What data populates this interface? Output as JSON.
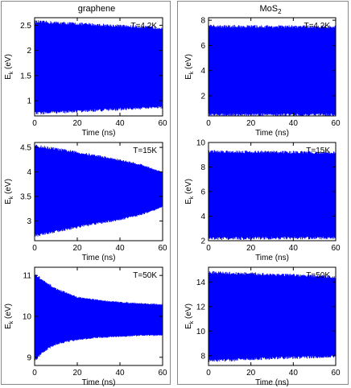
{
  "columns": [
    {
      "title_main": "graphene",
      "title_sub": ""
    },
    {
      "title_main": "MoS",
      "title_sub": "2"
    }
  ],
  "signal_color": "#0000ff",
  "chart_data": [
    {
      "type": "area",
      "column": 0,
      "row": 0,
      "annotation": "T=4.2K",
      "xlabel": "Time (ns)",
      "ylabel_main": "E",
      "ylabel_sub": "k",
      "ylabel_unit": " (eV)",
      "xlim": [
        0,
        60
      ],
      "ylim": [
        0.7,
        2.65
      ],
      "xticks": [
        0,
        20,
        40,
        60
      ],
      "yticks": [
        1,
        1.5,
        2,
        2.5
      ],
      "ytick_labels": [
        "1",
        "1.5",
        "2",
        "2.5"
      ],
      "upper_envelope": {
        "x": [
          0,
          60
        ],
        "y": [
          2.54,
          2.42
        ]
      },
      "lower_envelope": {
        "x": [
          0,
          60
        ],
        "y": [
          0.78,
          0.9
        ]
      }
    },
    {
      "type": "area",
      "column": 0,
      "row": 1,
      "annotation": "T=15K",
      "xlabel": "Time (ns)",
      "ylabel_main": "E",
      "ylabel_sub": "k",
      "ylabel_unit": " (eV)",
      "xlim": [
        0,
        60
      ],
      "ylim": [
        2.6,
        4.6
      ],
      "xticks": [
        0,
        20,
        40,
        60
      ],
      "yticks": [
        3,
        3.5,
        4,
        4.5
      ],
      "ytick_labels": [
        "3",
        "3.5",
        "4",
        "4.5"
      ],
      "upper_envelope": {
        "x": [
          0,
          10,
          20,
          30,
          40,
          50,
          60
        ],
        "y": [
          4.5,
          4.44,
          4.37,
          4.3,
          4.22,
          4.13,
          3.98
        ]
      },
      "lower_envelope": {
        "x": [
          0,
          10,
          20,
          30,
          40,
          50,
          60
        ],
        "y": [
          2.73,
          2.82,
          2.9,
          2.98,
          3.05,
          3.15,
          3.3
        ]
      }
    },
    {
      "type": "area",
      "column": 0,
      "row": 2,
      "annotation": "T=50K",
      "xlabel": "Time (ns)",
      "ylabel_main": "E",
      "ylabel_sub": "k",
      "ylabel_unit": " (eV)",
      "xlim": [
        0,
        60
      ],
      "ylim": [
        8.8,
        11.2
      ],
      "xticks": [
        0,
        20,
        40,
        60
      ],
      "yticks": [
        9,
        10,
        11
      ],
      "ytick_labels": [
        "9",
        "10",
        "11"
      ],
      "upper_envelope": {
        "x": [
          0,
          5,
          10,
          20,
          30,
          40,
          50,
          60
        ],
        "y": [
          11.0,
          10.8,
          10.65,
          10.45,
          10.38,
          10.33,
          10.3,
          10.27
        ]
      },
      "lower_envelope": {
        "x": [
          0,
          5,
          10,
          20,
          30,
          40,
          50,
          60
        ],
        "y": [
          8.95,
          9.2,
          9.35,
          9.45,
          9.5,
          9.52,
          9.55,
          9.55
        ]
      }
    },
    {
      "type": "area",
      "column": 1,
      "row": 0,
      "annotation": "T=4.2K",
      "xlabel": "Time (ns)",
      "ylabel_main": "E",
      "ylabel_sub": "k",
      "ylabel_unit": " (eV)",
      "xlim": [
        0,
        60
      ],
      "ylim": [
        0.4,
        8.2
      ],
      "xticks": [
        0,
        20,
        40,
        60
      ],
      "yticks": [
        2,
        4,
        6,
        8
      ],
      "ytick_labels": [
        "2",
        "4",
        "6",
        "8"
      ],
      "upper_envelope": {
        "x": [
          0,
          60
        ],
        "y": [
          7.4,
          7.35
        ]
      },
      "lower_envelope": {
        "x": [
          0,
          60
        ],
        "y": [
          0.6,
          0.62
        ]
      }
    },
    {
      "type": "area",
      "column": 1,
      "row": 1,
      "annotation": "T=15K",
      "xlabel": "Time (ns)",
      "ylabel_main": "E",
      "ylabel_sub": "k",
      "ylabel_unit": " (eV)",
      "xlim": [
        0,
        60
      ],
      "ylim": [
        2,
        10
      ],
      "xticks": [
        0,
        20,
        40,
        60
      ],
      "yticks": [
        2,
        4,
        6,
        8,
        10
      ],
      "ytick_labels": [
        "2",
        "4",
        "6",
        "8",
        "10"
      ],
      "upper_envelope": {
        "x": [
          0,
          60
        ],
        "y": [
          9.15,
          9.05
        ]
      },
      "lower_envelope": {
        "x": [
          0,
          60
        ],
        "y": [
          2.3,
          2.35
        ]
      }
    },
    {
      "type": "area",
      "column": 1,
      "row": 2,
      "annotation": "T=50K",
      "xlabel": "Time (ns)",
      "ylabel_main": "E",
      "ylabel_sub": "k",
      "ylabel_unit": " (eV)",
      "xlim": [
        0,
        60
      ],
      "ylim": [
        7.2,
        15.2
      ],
      "xticks": [
        0,
        20,
        40,
        60
      ],
      "yticks": [
        8,
        10,
        12,
        14
      ],
      "ytick_labels": [
        "8",
        "10",
        "12",
        "14"
      ],
      "upper_envelope": {
        "x": [
          0,
          30,
          60
        ],
        "y": [
          14.65,
          14.5,
          14.3
        ]
      },
      "lower_envelope": {
        "x": [
          0,
          30,
          60
        ],
        "y": [
          7.7,
          7.9,
          8.05
        ]
      }
    }
  ]
}
